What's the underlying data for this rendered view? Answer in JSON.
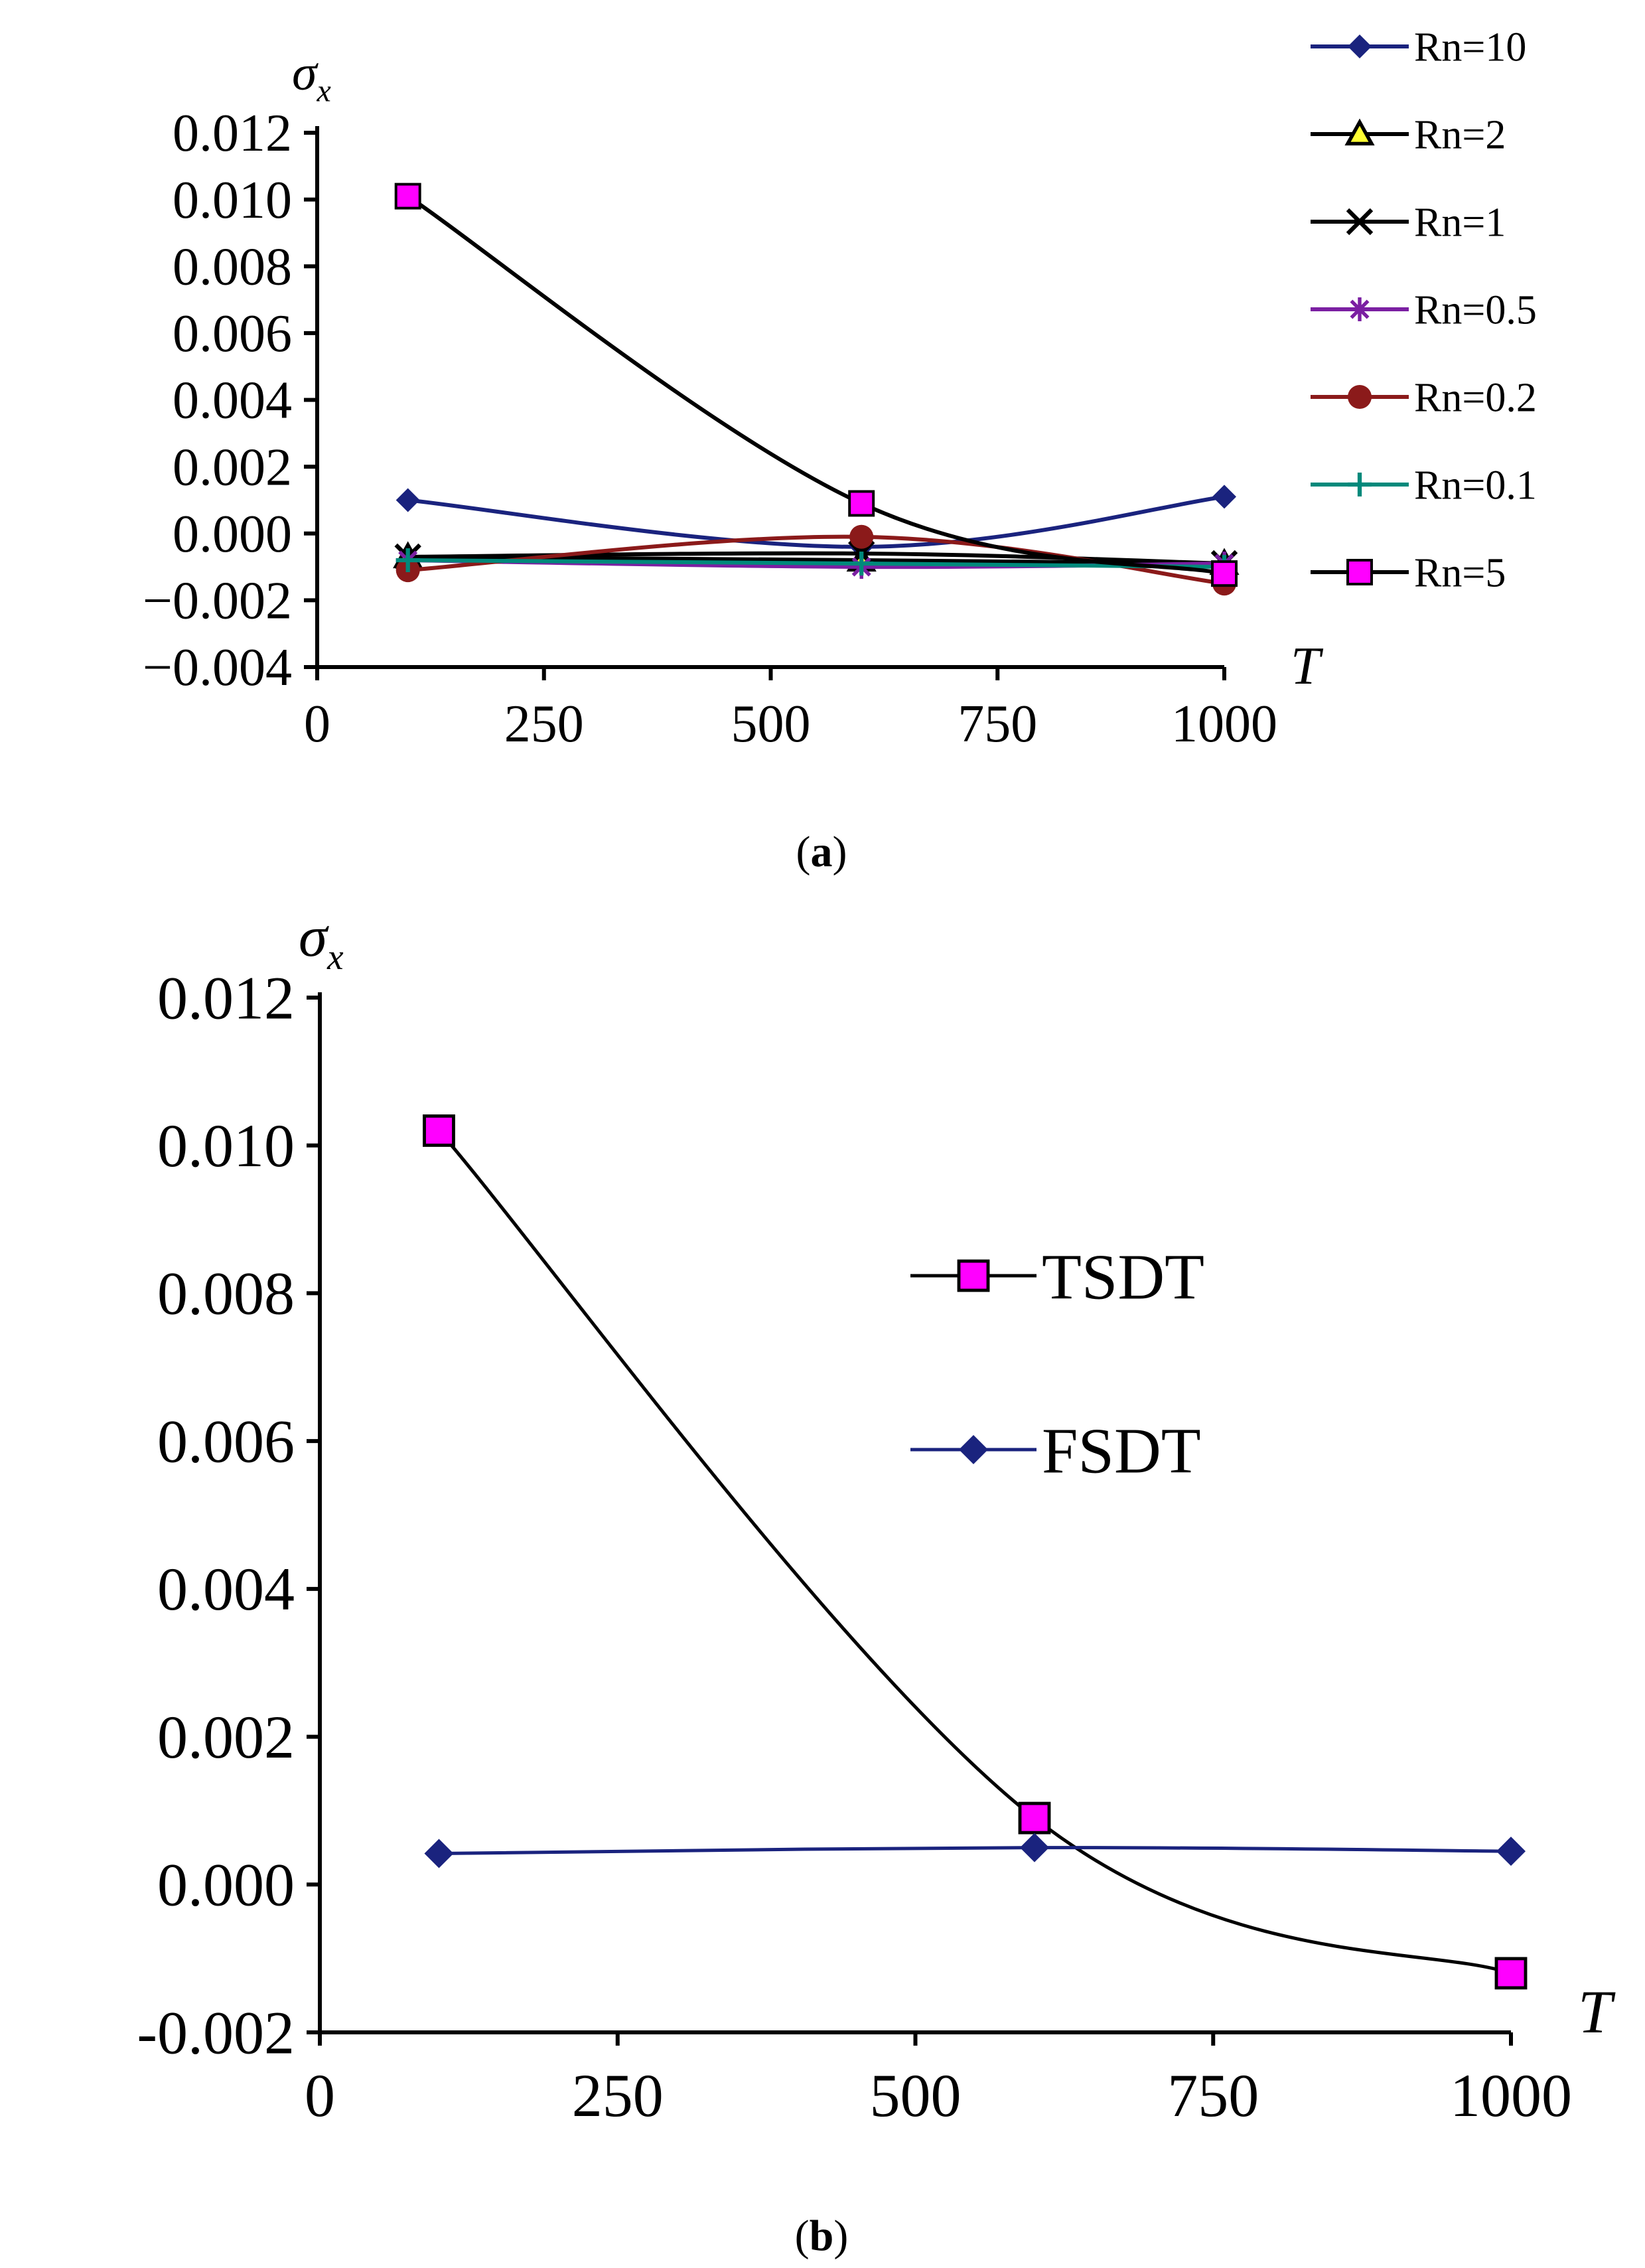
{
  "chart_data": [
    {
      "type": "line",
      "panel_label": "a",
      "ylabel": "σ",
      "ylabel_sub": "x",
      "xlabel": "T",
      "xlim": [
        0,
        1000
      ],
      "ylim": [
        -0.004,
        0.012
      ],
      "xticks": [
        "0",
        "250",
        "500",
        "750",
        "1000"
      ],
      "yticks": [
        "0.012",
        "0.010",
        "0.008",
        "0.006",
        "0.004",
        "0.002",
        "0.000",
        "−0.002",
        "−0.004"
      ],
      "x": [
        100,
        600,
        1000
      ],
      "series": [
        {
          "name": "Rn=10",
          "values": [
            0.001,
            -0.0004,
            0.0011
          ],
          "color": "#1a237e",
          "marker": "diamond"
        },
        {
          "name": "Rn=2",
          "values": [
            -0.0007,
            -0.0008,
            -0.0009
          ],
          "color": "#000000",
          "marker": "triangle",
          "marker_fill": "#ffff33"
        },
        {
          "name": "Rn=1",
          "values": [
            -0.0007,
            -0.0006,
            -0.0009
          ],
          "color": "#000000",
          "marker": "x"
        },
        {
          "name": "Rn=0.5",
          "values": [
            -0.0008,
            -0.001,
            -0.0009
          ],
          "color": "#7b1fa2",
          "marker": "star"
        },
        {
          "name": "Rn=0.2",
          "values": [
            -0.0011,
            -0.0001,
            -0.0015
          ],
          "color": "#8b1a1a",
          "marker": "circle"
        },
        {
          "name": "Rn=0.1",
          "values": [
            -0.0008,
            -0.0009,
            -0.001
          ],
          "color": "#00897b",
          "marker": "plus"
        },
        {
          "name": "Rn=5",
          "values": [
            0.0101,
            0.0009,
            -0.0012
          ],
          "color": "#000000",
          "marker": "square",
          "marker_fill": "#ff00ff"
        }
      ]
    },
    {
      "type": "line",
      "panel_label": "b",
      "ylabel": "σ",
      "ylabel_sub": "x",
      "xlabel": "T",
      "xlim": [
        0,
        1000
      ],
      "ylim": [
        -0.002,
        0.012
      ],
      "xticks": [
        "0",
        "250",
        "500",
        "750",
        "1000"
      ],
      "yticks": [
        "0.012",
        "0.010",
        "0.008",
        "0.006",
        "0.004",
        "0.002",
        "0.000",
        "-0.002"
      ],
      "x": [
        100,
        600,
        1000
      ],
      "series": [
        {
          "name": "TSDT",
          "values": [
            0.0102,
            0.0009,
            -0.0012
          ],
          "color": "#000000",
          "marker": "square",
          "marker_fill": "#ff00ff"
        },
        {
          "name": "FSDT",
          "values": [
            0.00042,
            0.0005,
            0.00045
          ],
          "color": "#1a237e",
          "marker": "diamond"
        }
      ]
    }
  ]
}
